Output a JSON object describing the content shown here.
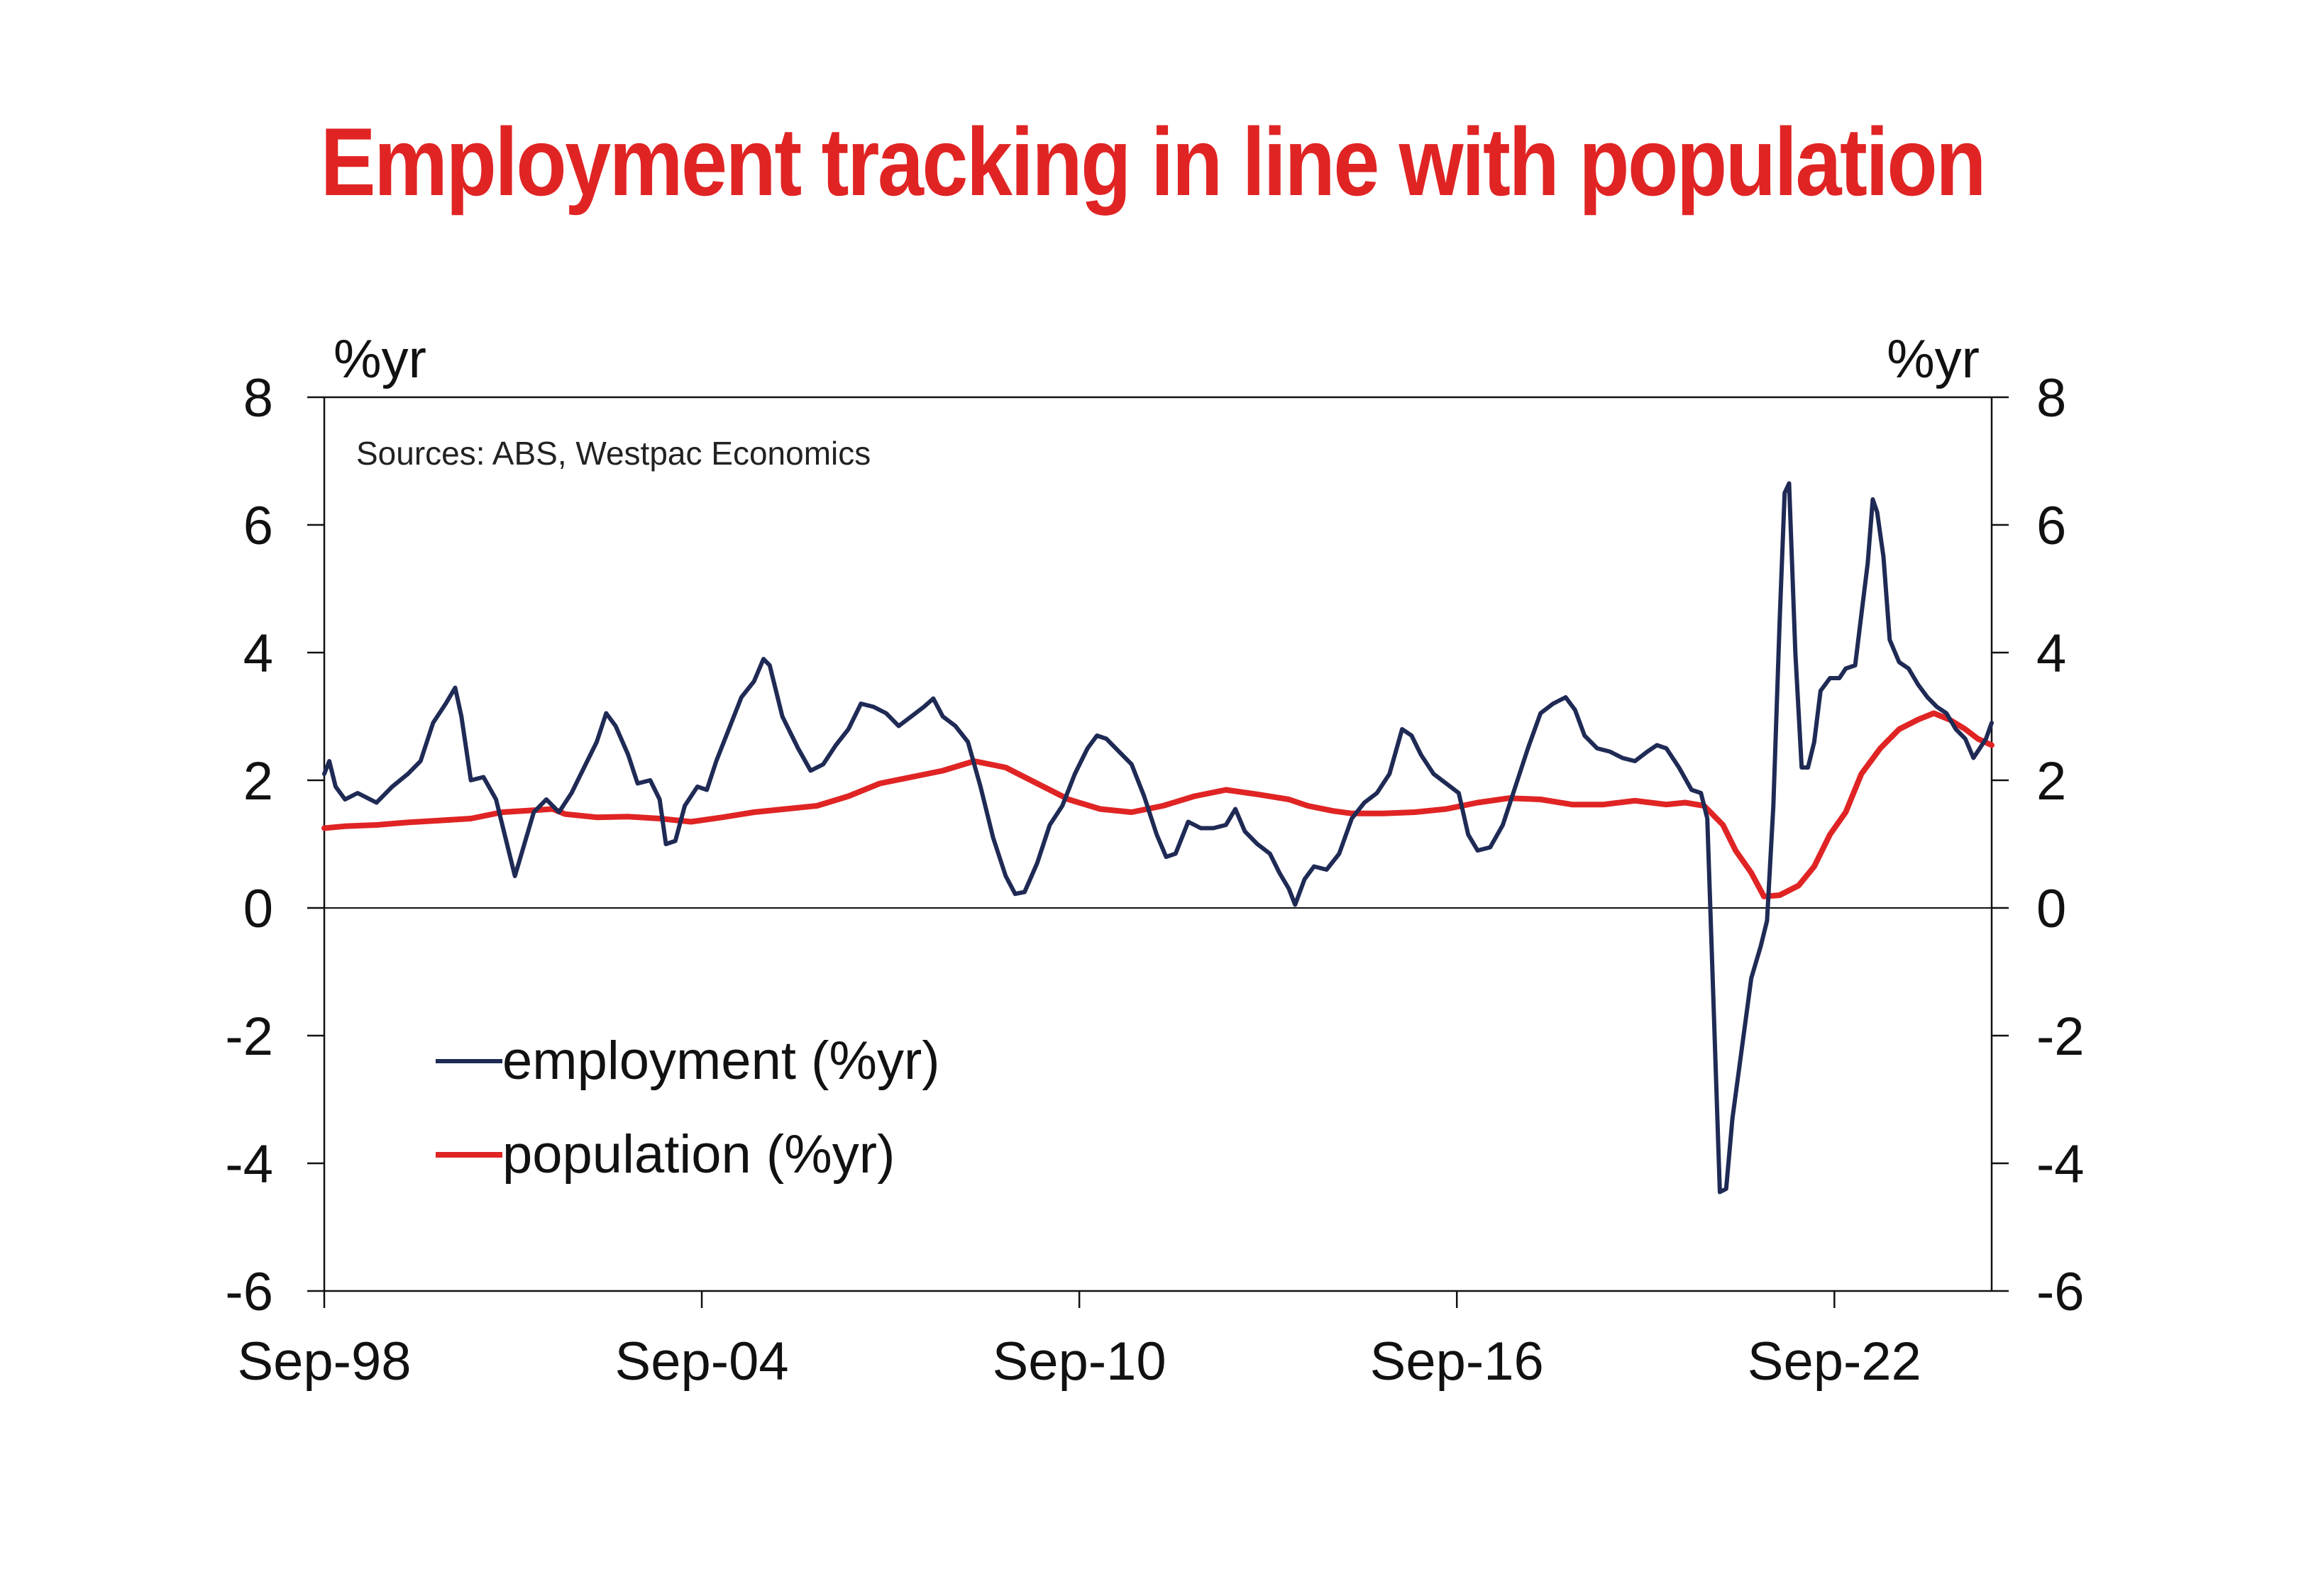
{
  "title": "Employment tracking in line with population",
  "chart_data": {
    "type": "line",
    "title": "Employment tracking in line with population",
    "source": "Sources: ABS, Westpac Economics",
    "y_unit_left": "%yr",
    "y_unit_right": "%yr",
    "ylim": [
      -6,
      8
    ],
    "yticks": [
      -6,
      -4,
      -2,
      0,
      2,
      4,
      6,
      8
    ],
    "xlim": [
      1998.67,
      2025.17
    ],
    "xticks": [
      {
        "x": 1998.67,
        "label": "Sep-98"
      },
      {
        "x": 2004.67,
        "label": "Sep-04"
      },
      {
        "x": 2010.67,
        "label": "Sep-10"
      },
      {
        "x": 2016.67,
        "label": "Sep-16"
      },
      {
        "x": 2022.67,
        "label": "Sep-22"
      }
    ],
    "zero_line": true,
    "grid": false,
    "legend_position": "lower-left",
    "series": [
      {
        "name": "employment (%yr)",
        "color": "#1f2a55",
        "points": [
          [
            1998.67,
            2.1
          ],
          [
            1998.75,
            2.3
          ],
          [
            1998.85,
            1.9
          ],
          [
            1999.0,
            1.7
          ],
          [
            1999.2,
            1.8
          ],
          [
            1999.5,
            1.65
          ],
          [
            1999.75,
            1.9
          ],
          [
            2000.0,
            2.1
          ],
          [
            2000.2,
            2.3
          ],
          [
            2000.4,
            2.9
          ],
          [
            2000.6,
            3.2
          ],
          [
            2000.75,
            3.45
          ],
          [
            2000.85,
            3.0
          ],
          [
            2001.0,
            2.0
          ],
          [
            2001.2,
            2.05
          ],
          [
            2001.4,
            1.7
          ],
          [
            2001.6,
            0.9
          ],
          [
            2001.7,
            0.5
          ],
          [
            2001.85,
            1.0
          ],
          [
            2002.0,
            1.5
          ],
          [
            2002.2,
            1.7
          ],
          [
            2002.4,
            1.5
          ],
          [
            2002.6,
            1.8
          ],
          [
            2002.8,
            2.2
          ],
          [
            2003.0,
            2.6
          ],
          [
            2003.15,
            3.05
          ],
          [
            2003.3,
            2.85
          ],
          [
            2003.5,
            2.4
          ],
          [
            2003.65,
            1.95
          ],
          [
            2003.85,
            2.0
          ],
          [
            2004.0,
            1.7
          ],
          [
            2004.1,
            1.0
          ],
          [
            2004.25,
            1.05
          ],
          [
            2004.4,
            1.6
          ],
          [
            2004.6,
            1.9
          ],
          [
            2004.75,
            1.85
          ],
          [
            2004.9,
            2.3
          ],
          [
            2005.1,
            2.8
          ],
          [
            2005.3,
            3.3
          ],
          [
            2005.5,
            3.55
          ],
          [
            2005.65,
            3.9
          ],
          [
            2005.75,
            3.8
          ],
          [
            2005.95,
            3.0
          ],
          [
            2006.2,
            2.5
          ],
          [
            2006.4,
            2.15
          ],
          [
            2006.6,
            2.25
          ],
          [
            2006.8,
            2.55
          ],
          [
            2007.0,
            2.8
          ],
          [
            2007.2,
            3.2
          ],
          [
            2007.4,
            3.15
          ],
          [
            2007.6,
            3.05
          ],
          [
            2007.8,
            2.85
          ],
          [
            2008.0,
            3.0
          ],
          [
            2008.2,
            3.15
          ],
          [
            2008.35,
            3.28
          ],
          [
            2008.5,
            3.0
          ],
          [
            2008.7,
            2.85
          ],
          [
            2008.9,
            2.6
          ],
          [
            2009.1,
            1.9
          ],
          [
            2009.3,
            1.1
          ],
          [
            2009.5,
            0.5
          ],
          [
            2009.65,
            0.22
          ],
          [
            2009.8,
            0.25
          ],
          [
            2010.0,
            0.7
          ],
          [
            2010.2,
            1.3
          ],
          [
            2010.4,
            1.6
          ],
          [
            2010.6,
            2.1
          ],
          [
            2010.8,
            2.5
          ],
          [
            2010.95,
            2.7
          ],
          [
            2011.1,
            2.65
          ],
          [
            2011.3,
            2.45
          ],
          [
            2011.5,
            2.25
          ],
          [
            2011.7,
            1.75
          ],
          [
            2011.9,
            1.15
          ],
          [
            2012.05,
            0.8
          ],
          [
            2012.2,
            0.85
          ],
          [
            2012.4,
            1.35
          ],
          [
            2012.6,
            1.25
          ],
          [
            2012.8,
            1.25
          ],
          [
            2013.0,
            1.3
          ],
          [
            2013.15,
            1.55
          ],
          [
            2013.3,
            1.2
          ],
          [
            2013.5,
            1.0
          ],
          [
            2013.7,
            0.85
          ],
          [
            2013.85,
            0.55
          ],
          [
            2014.0,
            0.3
          ],
          [
            2014.1,
            0.05
          ],
          [
            2014.25,
            0.45
          ],
          [
            2014.4,
            0.65
          ],
          [
            2014.6,
            0.6
          ],
          [
            2014.8,
            0.85
          ],
          [
            2015.0,
            1.4
          ],
          [
            2015.2,
            1.65
          ],
          [
            2015.4,
            1.8
          ],
          [
            2015.6,
            2.1
          ],
          [
            2015.8,
            2.8
          ],
          [
            2015.95,
            2.7
          ],
          [
            2016.1,
            2.4
          ],
          [
            2016.3,
            2.1
          ],
          [
            2016.5,
            1.95
          ],
          [
            2016.7,
            1.8
          ],
          [
            2016.85,
            1.15
          ],
          [
            2017.0,
            0.9
          ],
          [
            2017.2,
            0.95
          ],
          [
            2017.4,
            1.3
          ],
          [
            2017.6,
            1.9
          ],
          [
            2017.8,
            2.5
          ],
          [
            2018.0,
            3.05
          ],
          [
            2018.2,
            3.2
          ],
          [
            2018.4,
            3.3
          ],
          [
            2018.55,
            3.1
          ],
          [
            2018.7,
            2.7
          ],
          [
            2018.9,
            2.5
          ],
          [
            2019.1,
            2.45
          ],
          [
            2019.3,
            2.35
          ],
          [
            2019.5,
            2.3
          ],
          [
            2019.7,
            2.45
          ],
          [
            2019.85,
            2.55
          ],
          [
            2020.0,
            2.5
          ],
          [
            2020.2,
            2.2
          ],
          [
            2020.4,
            1.85
          ],
          [
            2020.55,
            1.8
          ],
          [
            2020.65,
            1.4
          ],
          [
            2020.75,
            -1.5
          ],
          [
            2020.85,
            -4.45
          ],
          [
            2020.95,
            -4.4
          ],
          [
            2021.05,
            -3.3
          ],
          [
            2021.2,
            -2.2
          ],
          [
            2021.35,
            -1.1
          ],
          [
            2021.5,
            -0.6
          ],
          [
            2021.6,
            -0.2
          ],
          [
            2021.7,
            1.6
          ],
          [
            2021.8,
            4.5
          ],
          [
            2021.88,
            6.5
          ],
          [
            2021.95,
            6.65
          ],
          [
            2022.05,
            4.0
          ],
          [
            2022.15,
            2.2
          ],
          [
            2022.25,
            2.2
          ],
          [
            2022.35,
            2.6
          ],
          [
            2022.45,
            3.4
          ],
          [
            2022.6,
            3.6
          ],
          [
            2022.75,
            3.6
          ],
          [
            2022.85,
            3.75
          ],
          [
            2023.0,
            3.8
          ],
          [
            2023.1,
            4.6
          ],
          [
            2023.2,
            5.4
          ],
          [
            2023.28,
            6.4
          ],
          [
            2023.35,
            6.2
          ],
          [
            2023.45,
            5.5
          ],
          [
            2023.55,
            4.2
          ],
          [
            2023.7,
            3.85
          ],
          [
            2023.85,
            3.75
          ],
          [
            2024.0,
            3.5
          ],
          [
            2024.15,
            3.3
          ],
          [
            2024.3,
            3.15
          ],
          [
            2024.45,
            3.05
          ],
          [
            2024.6,
            2.8
          ],
          [
            2024.75,
            2.65
          ],
          [
            2024.88,
            2.35
          ],
          [
            2024.98,
            2.5
          ],
          [
            2025.08,
            2.65
          ],
          [
            2025.17,
            2.9
          ]
        ]
      },
      {
        "name": "population (%yr)",
        "color": "#e02424",
        "points": [
          [
            1998.67,
            1.25
          ],
          [
            1999.0,
            1.28
          ],
          [
            1999.5,
            1.3
          ],
          [
            2000.0,
            1.34
          ],
          [
            2000.5,
            1.37
          ],
          [
            2001.0,
            1.4
          ],
          [
            2001.5,
            1.5
          ],
          [
            2002.0,
            1.53
          ],
          [
            2002.3,
            1.55
          ],
          [
            2002.5,
            1.47
          ],
          [
            2003.0,
            1.42
          ],
          [
            2003.5,
            1.43
          ],
          [
            2004.0,
            1.4
          ],
          [
            2004.5,
            1.35
          ],
          [
            2005.0,
            1.42
          ],
          [
            2005.5,
            1.5
          ],
          [
            2006.0,
            1.55
          ],
          [
            2006.5,
            1.6
          ],
          [
            2007.0,
            1.75
          ],
          [
            2007.5,
            1.95
          ],
          [
            2008.0,
            2.05
          ],
          [
            2008.5,
            2.15
          ],
          [
            2009.0,
            2.3
          ],
          [
            2009.5,
            2.2
          ],
          [
            2010.0,
            1.95
          ],
          [
            2010.5,
            1.7
          ],
          [
            2011.0,
            1.55
          ],
          [
            2011.5,
            1.5
          ],
          [
            2012.0,
            1.6
          ],
          [
            2012.5,
            1.75
          ],
          [
            2013.0,
            1.85
          ],
          [
            2013.5,
            1.78
          ],
          [
            2014.0,
            1.7
          ],
          [
            2014.3,
            1.6
          ],
          [
            2014.7,
            1.52
          ],
          [
            2015.0,
            1.48
          ],
          [
            2015.5,
            1.48
          ],
          [
            2016.0,
            1.5
          ],
          [
            2016.5,
            1.55
          ],
          [
            2017.0,
            1.65
          ],
          [
            2017.5,
            1.72
          ],
          [
            2018.0,
            1.7
          ],
          [
            2018.5,
            1.62
          ],
          [
            2019.0,
            1.62
          ],
          [
            2019.5,
            1.68
          ],
          [
            2020.0,
            1.62
          ],
          [
            2020.3,
            1.65
          ],
          [
            2020.6,
            1.6
          ],
          [
            2020.9,
            1.3
          ],
          [
            2021.1,
            0.9
          ],
          [
            2021.35,
            0.55
          ],
          [
            2021.55,
            0.18
          ],
          [
            2021.8,
            0.2
          ],
          [
            2022.1,
            0.35
          ],
          [
            2022.35,
            0.65
          ],
          [
            2022.6,
            1.15
          ],
          [
            2022.85,
            1.5
          ],
          [
            2023.1,
            2.1
          ],
          [
            2023.4,
            2.5
          ],
          [
            2023.7,
            2.8
          ],
          [
            2024.0,
            2.95
          ],
          [
            2024.25,
            3.05
          ],
          [
            2024.5,
            2.95
          ],
          [
            2024.75,
            2.8
          ],
          [
            2024.95,
            2.65
          ],
          [
            2025.17,
            2.55
          ]
        ]
      }
    ]
  }
}
